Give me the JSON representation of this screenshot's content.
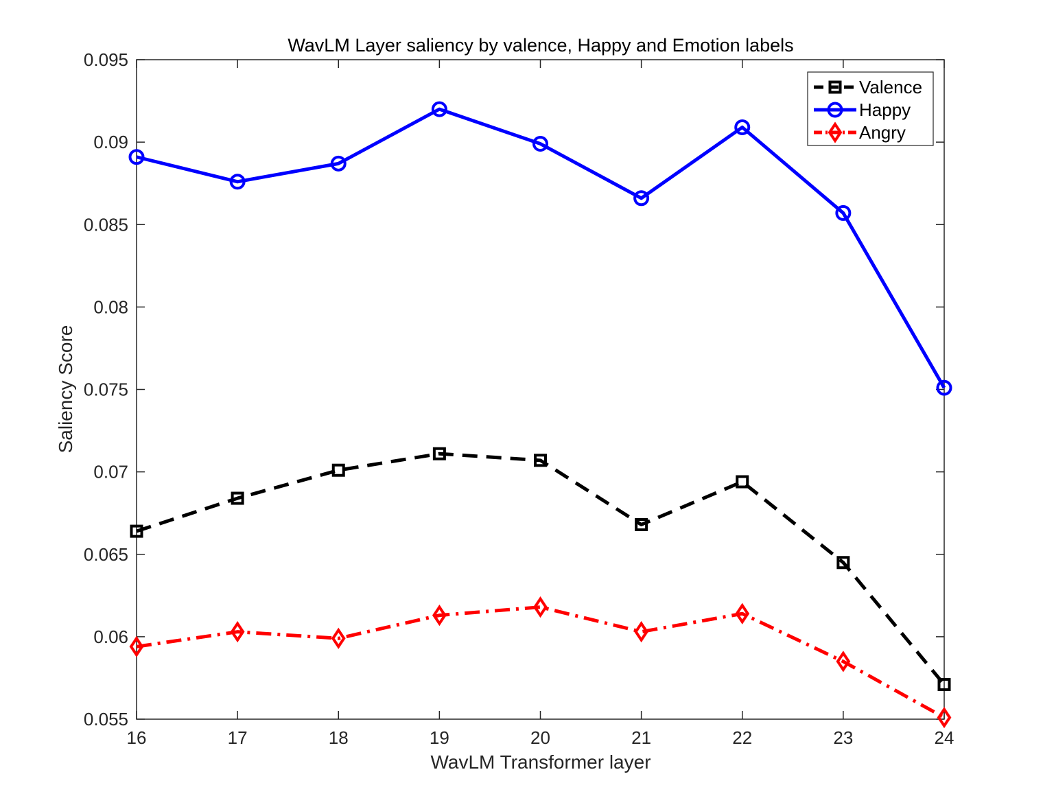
{
  "chart_data": {
    "type": "line",
    "title": "WavLM Layer saliency by valence, Happy and Emotion labels",
    "xlabel": "WavLM Transformer layer",
    "ylabel": "Saliency Score",
    "x": [
      16,
      17,
      18,
      19,
      20,
      21,
      22,
      23,
      24
    ],
    "xlim": [
      16,
      24
    ],
    "ylim": [
      0.055,
      0.095
    ],
    "xticks": [
      "16",
      "17",
      "18",
      "19",
      "20",
      "21",
      "22",
      "23",
      "24"
    ],
    "yticks": [
      {
        "value": 0.055,
        "label": "0.055"
      },
      {
        "value": 0.06,
        "label": "0.06"
      },
      {
        "value": 0.065,
        "label": "0.065"
      },
      {
        "value": 0.07,
        "label": "0.07"
      },
      {
        "value": 0.075,
        "label": "0.075"
      },
      {
        "value": 0.08,
        "label": "0.08"
      },
      {
        "value": 0.085,
        "label": "0.085"
      },
      {
        "value": 0.09,
        "label": "0.09"
      },
      {
        "value": 0.095,
        "label": "0.095"
      }
    ],
    "grid": false,
    "legend_position": "top-right",
    "series": [
      {
        "name": "Valence",
        "key": "valence",
        "color": "#000000",
        "dash": "dashed",
        "marker": "square",
        "values": [
          0.0664,
          0.0684,
          0.0701,
          0.0711,
          0.0707,
          0.0668,
          0.0694,
          0.0645,
          0.0571
        ]
      },
      {
        "name": "Happy",
        "key": "happy",
        "color": "#0000ff",
        "dash": "solid",
        "marker": "circle",
        "values": [
          0.0891,
          0.0876,
          0.0887,
          0.092,
          0.0899,
          0.0866,
          0.0909,
          0.0857,
          0.0751
        ]
      },
      {
        "name": "Angry",
        "key": "angry",
        "color": "#ff0000",
        "dash": "dashdot",
        "marker": "diamond",
        "values": [
          0.0594,
          0.0603,
          0.0599,
          0.0613,
          0.0618,
          0.0603,
          0.0614,
          0.0585,
          0.0551
        ]
      }
    ]
  }
}
